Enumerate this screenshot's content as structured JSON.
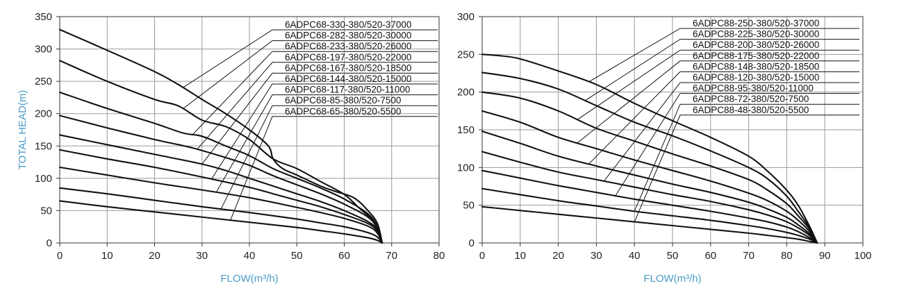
{
  "chart_data": [
    {
      "type": "line",
      "title": "",
      "xlabel": "FLOW(m³/h)",
      "ylabel": "TOTAL HEAD(m)",
      "xlim": [
        0,
        80
      ],
      "ylim": [
        0,
        350
      ],
      "xticks": [
        0,
        10,
        20,
        30,
        40,
        50,
        60,
        70,
        80
      ],
      "yticks": [
        0,
        50,
        100,
        150,
        200,
        250,
        300,
        350
      ],
      "grid": true,
      "series": [
        {
          "name": "6ADPC68-330-380/520-37000",
          "x": [
            0,
            10,
            20,
            25,
            30,
            35,
            40,
            44,
            45,
            47,
            50,
            55,
            58,
            62,
            65,
            67,
            68
          ],
          "y": [
            330,
            298,
            265,
            245,
            222,
            200,
            175,
            150,
            130,
            115,
            105,
            88,
            80,
            70,
            50,
            30,
            0
          ],
          "label_at_x": 26
        },
        {
          "name": "6ADPC68-282-380/520-30000",
          "x": [
            0,
            10,
            20,
            25,
            30,
            35,
            40,
            45,
            50,
            55,
            60,
            63,
            65,
            67,
            68
          ],
          "y": [
            282,
            250,
            222,
            212,
            190,
            180,
            160,
            130,
            115,
            95,
            75,
            55,
            42,
            25,
            0
          ],
          "label_at_x": 26
        },
        {
          "name": "6ADPC68-233-380/520-26000",
          "x": [
            0,
            10,
            20,
            26,
            30,
            35,
            40,
            45,
            50,
            55,
            60,
            65,
            67,
            68
          ],
          "y": [
            233,
            208,
            185,
            170,
            165,
            150,
            135,
            115,
            100,
            85,
            68,
            45,
            25,
            0
          ],
          "label_at_x": 28
        },
        {
          "name": "6ADPC68-197-380/520-22000",
          "x": [
            0,
            10,
            20,
            28,
            35,
            40,
            45,
            50,
            55,
            60,
            65,
            67,
            68
          ],
          "y": [
            197,
            178,
            160,
            147,
            132,
            120,
            104,
            90,
            76,
            60,
            40,
            22,
            0
          ],
          "label_at_x": 29
        },
        {
          "name": "6ADPC68-167-380/520-18500",
          "x": [
            0,
            10,
            20,
            30,
            35,
            40,
            45,
            50,
            55,
            60,
            65,
            67,
            68
          ],
          "y": [
            167,
            152,
            137,
            122,
            112,
            100,
            88,
            76,
            64,
            50,
            33,
            20,
            0
          ],
          "label_at_x": 30
        },
        {
          "name": "6ADPC68-144-380/520-15000",
          "x": [
            0,
            10,
            20,
            30,
            40,
            45,
            50,
            55,
            60,
            65,
            67,
            68
          ],
          "y": [
            144,
            130,
            117,
            102,
            86,
            76,
            66,
            56,
            44,
            30,
            18,
            0
          ],
          "label_at_x": 32
        },
        {
          "name": "6ADPC68-117-380/520-11000",
          "x": [
            0,
            10,
            20,
            30,
            40,
            50,
            55,
            60,
            65,
            67,
            68
          ],
          "y": [
            117,
            105,
            93,
            82,
            70,
            55,
            47,
            38,
            26,
            15,
            0
          ],
          "label_at_x": 33
        },
        {
          "name": "6ADPC68-85-380/520-7500",
          "x": [
            0,
            10,
            20,
            30,
            40,
            50,
            55,
            60,
            65,
            67,
            68
          ],
          "y": [
            85,
            76,
            66,
            56,
            47,
            37,
            31,
            25,
            16,
            9,
            0
          ],
          "label_at_x": 34
        },
        {
          "name": "6ADPC68-65-380/520-5500",
          "x": [
            0,
            10,
            20,
            30,
            40,
            50,
            55,
            60,
            65,
            67,
            68
          ],
          "y": [
            65,
            56,
            48,
            40,
            32,
            24,
            19,
            14,
            8,
            4,
            0
          ],
          "label_at_x": 36
        }
      ]
    },
    {
      "type": "line",
      "title": "",
      "xlabel": "FLOW(m³/h)",
      "ylabel": "",
      "xlim": [
        0,
        100
      ],
      "ylim": [
        0,
        300
      ],
      "xticks": [
        0,
        10,
        20,
        30,
        40,
        50,
        60,
        70,
        80,
        90,
        100
      ],
      "yticks": [
        0,
        50,
        100,
        150,
        200,
        250,
        300
      ],
      "grid": true,
      "series": [
        {
          "name": "6ADPC88-250-380/520-37000",
          "x": [
            0,
            5,
            10,
            20,
            30,
            40,
            50,
            60,
            70,
            75,
            80,
            83,
            86,
            88
          ],
          "y": [
            250,
            248,
            244,
            228,
            210,
            185,
            162,
            140,
            115,
            95,
            70,
            50,
            22,
            0
          ],
          "label_at_x": 28
        },
        {
          "name": "6ADPC88-225-380/520-30000",
          "x": [
            0,
            10,
            20,
            30,
            40,
            50,
            60,
            70,
            75,
            80,
            83,
            86,
            88
          ],
          "y": [
            226,
            218,
            204,
            182,
            160,
            142,
            122,
            100,
            85,
            62,
            42,
            20,
            0
          ],
          "label_at_x": 27
        },
        {
          "name": "6ADPC88-200-380/520-26000",
          "x": [
            0,
            10,
            20,
            30,
            40,
            50,
            60,
            70,
            75,
            80,
            83,
            86,
            88
          ],
          "y": [
            200,
            192,
            175,
            152,
            135,
            118,
            102,
            84,
            70,
            52,
            36,
            18,
            0
          ],
          "label_at_x": 25
        },
        {
          "name": "6ADPC88-175-380/520-22000",
          "x": [
            0,
            10,
            20,
            30,
            40,
            50,
            60,
            70,
            75,
            80,
            83,
            86,
            88
          ],
          "y": [
            175,
            160,
            140,
            125,
            110,
            96,
            82,
            66,
            56,
            42,
            30,
            15,
            0
          ],
          "label_at_x": 25
        },
        {
          "name": "6ADPC88-148-380/520-18500",
          "x": [
            0,
            10,
            20,
            30,
            40,
            50,
            60,
            70,
            75,
            80,
            83,
            86,
            88
          ],
          "y": [
            148,
            132,
            115,
            102,
            90,
            78,
            67,
            54,
            45,
            34,
            24,
            12,
            0
          ],
          "label_at_x": 28
        },
        {
          "name": "6ADPC88-120-380/520-15000",
          "x": [
            0,
            10,
            20,
            30,
            40,
            50,
            60,
            70,
            75,
            80,
            83,
            86,
            88
          ],
          "y": [
            121,
            107,
            94,
            84,
            74,
            64,
            55,
            44,
            37,
            28,
            20,
            10,
            0
          ],
          "label_at_x": 32
        },
        {
          "name": "6ADPC88-95-380/520-11000",
          "x": [
            0,
            10,
            20,
            30,
            40,
            50,
            60,
            70,
            75,
            80,
            83,
            86,
            88
          ],
          "y": [
            96,
            86,
            76,
            67,
            58,
            50,
            42,
            33,
            28,
            21,
            15,
            7,
            0
          ],
          "label_at_x": 35
        },
        {
          "name": "6ADPC88-72-380/520-7500",
          "x": [
            0,
            10,
            20,
            30,
            40,
            50,
            60,
            70,
            75,
            80,
            83,
            86,
            88
          ],
          "y": [
            72,
            64,
            56,
            49,
            42,
            36,
            30,
            23,
            19,
            14,
            10,
            5,
            0
          ],
          "label_at_x": 40
        },
        {
          "name": "6ADPC88-48-380/520-5500",
          "x": [
            0,
            10,
            20,
            30,
            40,
            50,
            60,
            70,
            75,
            80,
            83,
            86,
            88
          ],
          "y": [
            48,
            43,
            38,
            33,
            28,
            23,
            18,
            13,
            10,
            7,
            5,
            2,
            0
          ],
          "label_at_x": 40
        }
      ]
    }
  ]
}
